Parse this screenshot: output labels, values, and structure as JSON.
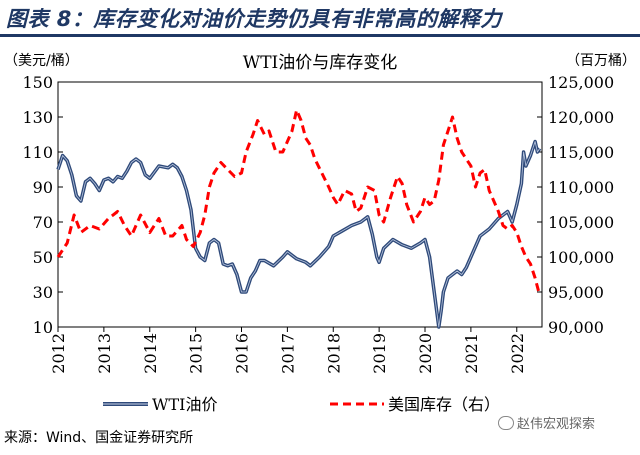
{
  "figure_label": "图表 8：库存变化对油价走势仍具有非常高的解释力",
  "source_note": "来源：Wind、国金证券研究所",
  "watermark": "赵伟宏观探索",
  "colors": {
    "wti": "#2f4a7a",
    "inventory": "#ff0000",
    "title": "#1f3864"
  },
  "chart_data": {
    "type": "line",
    "title": "WTI油价与库存变化",
    "ylabel_left": "（美元/桶）",
    "ylabel_right": "（百万桶）",
    "xlabel": "",
    "xlim": [
      2012,
      2022.55
    ],
    "ylim_left": [
      10,
      150
    ],
    "ylim_right": [
      90000,
      125000
    ],
    "x_ticks": [
      "2012",
      "2013",
      "2014",
      "2015",
      "2016",
      "2017",
      "2018",
      "2019",
      "2020",
      "2021",
      "2022"
    ],
    "y_ticks_left": [
      "10",
      "30",
      "50",
      "70",
      "90",
      "110",
      "130",
      "150"
    ],
    "y_ticks_right": [
      "90,000",
      "95,000",
      "100,000",
      "105,000",
      "110,000",
      "115,000",
      "120,000",
      "125,000"
    ],
    "legend_position": "bottom",
    "series": [
      {
        "name": "WTI油价",
        "axis": "left",
        "style": "solid",
        "x": [
          2012.0,
          2012.1,
          2012.2,
          2012.3,
          2012.4,
          2012.5,
          2012.6,
          2012.7,
          2012.8,
          2012.9,
          2013.0,
          2013.1,
          2013.2,
          2013.3,
          2013.4,
          2013.5,
          2013.6,
          2013.7,
          2013.8,
          2013.9,
          2014.0,
          2014.2,
          2014.4,
          2014.5,
          2014.6,
          2014.7,
          2014.8,
          2014.9,
          2015.0,
          2015.1,
          2015.2,
          2015.3,
          2015.4,
          2015.5,
          2015.6,
          2015.7,
          2015.8,
          2015.9,
          2016.0,
          2016.1,
          2016.2,
          2016.3,
          2016.4,
          2016.5,
          2016.7,
          2016.9,
          2017.0,
          2017.2,
          2017.4,
          2017.5,
          2017.7,
          2017.9,
          2018.0,
          2018.2,
          2018.4,
          2018.6,
          2018.75,
          2018.85,
          2018.95,
          2019.0,
          2019.1,
          2019.3,
          2019.5,
          2019.7,
          2019.9,
          2020.0,
          2020.1,
          2020.2,
          2020.25,
          2020.3,
          2020.35,
          2020.4,
          2020.5,
          2020.6,
          2020.7,
          2020.8,
          2020.9,
          2021.0,
          2021.2,
          2021.4,
          2021.6,
          2021.8,
          2021.9,
          2022.0,
          2022.1,
          2022.15,
          2022.2,
          2022.3,
          2022.4,
          2022.45,
          2022.5
        ],
        "y": [
          100,
          108,
          105,
          97,
          85,
          82,
          93,
          95,
          92,
          88,
          94,
          95,
          93,
          96,
          95,
          99,
          104,
          106,
          104,
          97,
          95,
          102,
          101,
          103,
          101,
          96,
          88,
          77,
          55,
          50,
          48,
          58,
          60,
          58,
          46,
          45,
          46,
          40,
          30,
          30,
          38,
          42,
          48,
          48,
          45,
          50,
          53,
          49,
          47,
          45,
          50,
          56,
          62,
          65,
          68,
          70,
          73,
          63,
          50,
          47,
          55,
          60,
          57,
          55,
          58,
          60,
          50,
          30,
          20,
          10,
          19,
          30,
          38,
          40,
          42,
          40,
          44,
          50,
          62,
          66,
          72,
          76,
          70,
          80,
          92,
          110,
          102,
          108,
          116,
          110,
          112
        ]
      },
      {
        "name": "美国库存（右）",
        "axis": "right",
        "style": "dashed",
        "x": [
          2012.0,
          2012.2,
          2012.35,
          2012.5,
          2012.7,
          2012.9,
          2013.1,
          2013.3,
          2013.45,
          2013.6,
          2013.8,
          2014.0,
          2014.2,
          2014.35,
          2014.5,
          2014.7,
          2014.8,
          2014.95,
          2015.1,
          2015.2,
          2015.3,
          2015.4,
          2015.55,
          2015.7,
          2015.85,
          2016.0,
          2016.1,
          2016.25,
          2016.35,
          2016.5,
          2016.6,
          2016.75,
          2016.9,
          2017.0,
          2017.1,
          2017.2,
          2017.3,
          2017.4,
          2017.5,
          2017.6,
          2017.75,
          2017.9,
          2018.0,
          2018.1,
          2018.25,
          2018.4,
          2018.5,
          2018.6,
          2018.75,
          2018.9,
          2019.0,
          2019.1,
          2019.25,
          2019.4,
          2019.5,
          2019.6,
          2019.75,
          2019.9,
          2020.0,
          2020.1,
          2020.2,
          2020.3,
          2020.4,
          2020.5,
          2020.6,
          2020.7,
          2020.8,
          2020.9,
          2021.0,
          2021.1,
          2021.2,
          2021.3,
          2021.4,
          2021.5,
          2021.6,
          2021.7,
          2021.8,
          2021.9,
          2022.0,
          2022.1,
          2022.2,
          2022.3,
          2022.4,
          2022.5
        ],
        "y": [
          100000,
          102000,
          106000,
          103500,
          104500,
          104000,
          105500,
          106500,
          104500,
          103000,
          106000,
          103500,
          105500,
          103000,
          103000,
          104500,
          102500,
          101500,
          103500,
          106000,
          110000,
          112000,
          113500,
          112500,
          111500,
          112000,
          115000,
          117500,
          119500,
          117500,
          118000,
          115000,
          115000,
          116500,
          118000,
          121000,
          119500,
          117000,
          116000,
          114000,
          112000,
          110000,
          108500,
          107500,
          109500,
          109000,
          106500,
          107000,
          110000,
          109500,
          106000,
          105000,
          108500,
          111500,
          110500,
          107500,
          105000,
          106500,
          108500,
          107500,
          108000,
          111000,
          116000,
          118000,
          120000,
          117000,
          115000,
          114000,
          113000,
          110000,
          112000,
          112500,
          109500,
          108000,
          106500,
          104500,
          104000,
          104500,
          103500,
          101500,
          100000,
          99000,
          97000,
          94500
        ]
      }
    ]
  }
}
